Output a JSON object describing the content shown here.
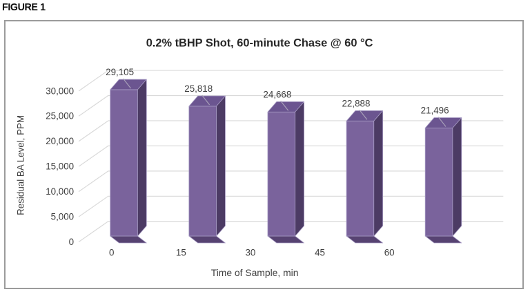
{
  "figure_label": "FIGURE 1",
  "chart_data": {
    "type": "bar",
    "style": "3d-column",
    "title": "0.2% tBHP Shot, 60-minute Chase @ 60 °C",
    "xlabel": "Time of Sample, min",
    "ylabel": "Residual BA Level, PPM",
    "categories": [
      "0",
      "15",
      "30",
      "45",
      "60"
    ],
    "values": [
      29105,
      25818,
      24668,
      22888,
      21496
    ],
    "data_labels": [
      "29,105",
      "25,818",
      "24,668",
      "22,888",
      "21,496"
    ],
    "y_ticks": [
      "0",
      "5,000",
      "10,000",
      "15,000",
      "20,000",
      "25,000",
      "30,000"
    ],
    "y_tick_values": [
      0,
      5000,
      10000,
      15000,
      20000,
      25000,
      30000
    ],
    "ylim": [
      0,
      30000
    ],
    "grid": true,
    "legend": false,
    "colors": {
      "bar_front": "#7a639c",
      "bar_top": "#6b5590",
      "bar_side": "#4c3b64",
      "bar_base": "#574372",
      "bar_edge": "#a79bc4",
      "gridline": "#d9d9d9",
      "leader_line": "#a8a0b8",
      "axis_text": "#3f3f3f",
      "title_text": "#262626"
    }
  }
}
